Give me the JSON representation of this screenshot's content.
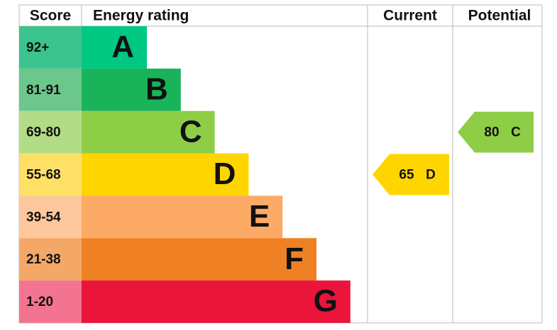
{
  "chart_data": {
    "type": "epc",
    "headers": {
      "score": "Score",
      "rating": "Energy rating",
      "current": "Current",
      "potential": "Potential"
    },
    "bands": [
      {
        "score": "92+",
        "letter": "A",
        "color": "#00c781",
        "score_color": "#3cc48f"
      },
      {
        "score": "81-91",
        "letter": "B",
        "color": "#19b459",
        "score_color": "#6cc78d"
      },
      {
        "score": "69-80",
        "letter": "C",
        "color": "#8dce46",
        "score_color": "#b2dc86"
      },
      {
        "score": "55-68",
        "letter": "D",
        "color": "#ffd500",
        "score_color": "#ffe066"
      },
      {
        "score": "39-54",
        "letter": "E",
        "color": "#fcaa65",
        "score_color": "#fdc79d"
      },
      {
        "score": "21-38",
        "letter": "F",
        "color": "#ef8023",
        "score_color": "#f3a867"
      },
      {
        "score": "1-20",
        "letter": "G",
        "color": "#e9153b",
        "score_color": "#f27490"
      }
    ],
    "current": {
      "value": 65,
      "letter": "D",
      "color": "#ffd500"
    },
    "potential": {
      "value": 80,
      "letter": "C",
      "color": "#8dce46"
    }
  }
}
